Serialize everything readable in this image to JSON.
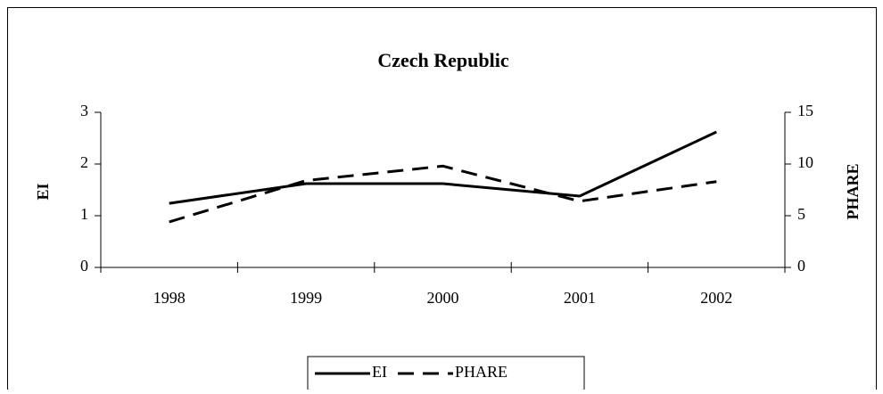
{
  "chart_data": {
    "type": "line",
    "title": "Czech Republic",
    "categories": [
      "1998",
      "1999",
      "2000",
      "2001",
      "2002"
    ],
    "series": [
      {
        "name": "EI",
        "color": "#000000",
        "dash": "solid",
        "axis": "y",
        "values": [
          1.24,
          1.62,
          1.62,
          1.38,
          2.62
        ]
      },
      {
        "name": "PHARE",
        "color": "#000000",
        "dash": "dashed",
        "axis": "y2",
        "values": [
          4.4,
          8.4,
          9.8,
          6.4,
          8.3
        ]
      }
    ],
    "ylabel": "EI",
    "y2label": "PHARE",
    "ylim": [
      0,
      3
    ],
    "yticks": [
      0,
      1,
      2,
      3
    ],
    "y2lim": [
      0,
      15
    ],
    "y2ticks": [
      0,
      5,
      10,
      15
    ],
    "legend": "bottom"
  }
}
